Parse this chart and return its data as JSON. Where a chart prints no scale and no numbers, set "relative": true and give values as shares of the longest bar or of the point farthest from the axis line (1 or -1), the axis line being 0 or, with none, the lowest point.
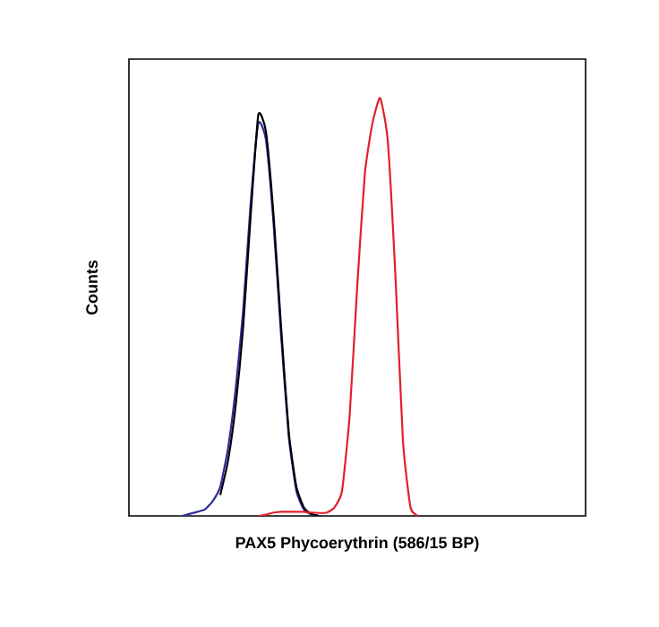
{
  "chart_data": {
    "type": "line",
    "relative": true,
    "xlabel": "PAX5 Phycoerythrin  (586/15 BP)",
    "ylabel": "Counts",
    "categories": [
      null,
      null,
      null,
      null,
      null,
      null,
      null,
      null,
      null,
      null,
      null,
      null,
      null,
      null,
      null,
      null,
      null,
      null,
      null,
      null,
      null,
      null,
      null,
      null,
      null,
      null,
      null,
      null,
      null,
      null,
      null,
      null,
      null,
      null,
      null,
      null,
      null,
      null,
      null,
      null,
      null,
      null,
      null,
      null,
      null,
      null,
      null,
      null,
      null,
      null,
      null,
      null,
      null,
      null,
      null,
      null,
      null,
      null,
      null,
      null,
      null
    ],
    "series": [
      {
        "color": "#2b2b9b",
        "values": [
          null,
          null,
          null,
          null,
          null,
          null,
          null,
          0,
          0.005,
          0.01,
          0.016,
          0.035,
          0.07,
          0.16,
          0.3,
          0.49,
          0.75,
          0.94,
          0.9,
          0.7,
          0.43,
          0.19,
          0.06,
          0.015,
          0.003,
          0,
          null,
          null,
          null,
          null,
          null,
          null,
          null,
          null,
          null,
          null,
          null,
          null,
          null,
          null,
          null,
          null,
          null,
          null,
          null,
          null,
          null,
          null,
          null,
          null,
          null,
          null,
          null,
          null,
          null,
          null,
          null,
          null,
          null,
          null,
          null
        ]
      },
      {
        "color": "#000000",
        "values": [
          null,
          null,
          null,
          null,
          null,
          null,
          null,
          null,
          null,
          null,
          null,
          null,
          0.05,
          0.13,
          0.26,
          0.45,
          0.72,
          0.96,
          0.92,
          0.72,
          0.45,
          0.2,
          0.07,
          0.02,
          0.005,
          0,
          null,
          null,
          null,
          null,
          null,
          null,
          null,
          null,
          null,
          null,
          null,
          null,
          null,
          null,
          null,
          null,
          null,
          null,
          null,
          null,
          null,
          null,
          null,
          null,
          null,
          null,
          null,
          null,
          null,
          null,
          null,
          null,
          null,
          null,
          null
        ]
      },
      {
        "color": "#e0202a",
        "values": [
          null,
          null,
          null,
          null,
          null,
          null,
          null,
          null,
          null,
          null,
          null,
          null,
          null,
          null,
          null,
          null,
          null,
          0,
          0.003,
          0.008,
          0.01,
          0.01,
          0.01,
          0.01,
          0.008,
          0.007,
          0.008,
          0.02,
          0.06,
          0.24,
          0.55,
          0.82,
          0.94,
          1,
          0.9,
          0.58,
          0.18,
          0.02,
          0,
          null,
          null,
          null,
          null,
          null,
          null,
          null,
          null,
          null,
          null,
          null,
          null,
          null,
          null,
          null,
          null,
          null,
          null,
          null,
          null,
          null,
          null
        ]
      }
    ]
  }
}
